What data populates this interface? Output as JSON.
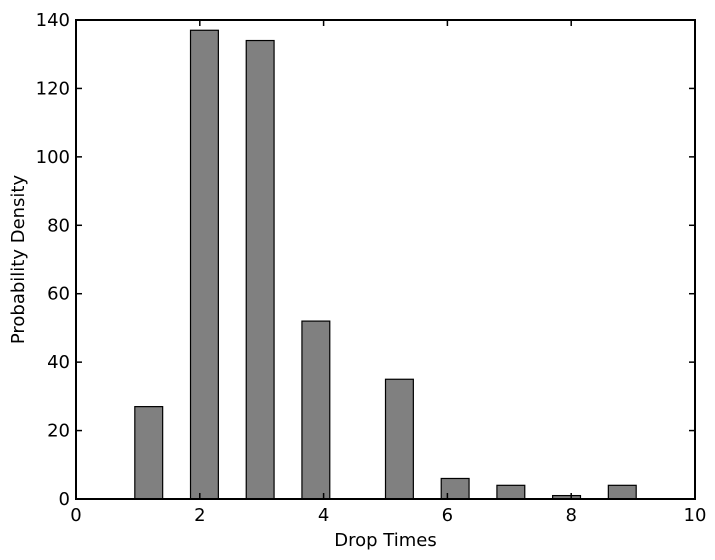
{
  "chart_data": {
    "type": "bar",
    "xlabel": "Drop Times",
    "ylabel": "Probability Density",
    "xlim": [
      0,
      10
    ],
    "ylim": [
      0,
      140
    ],
    "x_ticks": [
      0,
      2,
      4,
      6,
      8,
      10
    ],
    "y_ticks": [
      0,
      20,
      40,
      60,
      80,
      100,
      120,
      140
    ],
    "bar_width": 0.45,
    "grid": false,
    "bar_color": "#808080",
    "edge_color": "#000000",
    "bars": [
      {
        "x": 0.55,
        "value": 0
      },
      {
        "x": 0.95,
        "value": 27
      },
      {
        "x": 1.85,
        "value": 137
      },
      {
        "x": 2.75,
        "value": 134
      },
      {
        "x": 3.65,
        "value": 52
      },
      {
        "x": 5.0,
        "value": 35
      },
      {
        "x": 5.9,
        "value": 6
      },
      {
        "x": 6.8,
        "value": 4
      },
      {
        "x": 7.7,
        "value": 1
      },
      {
        "x": 8.6,
        "value": 4
      }
    ]
  }
}
